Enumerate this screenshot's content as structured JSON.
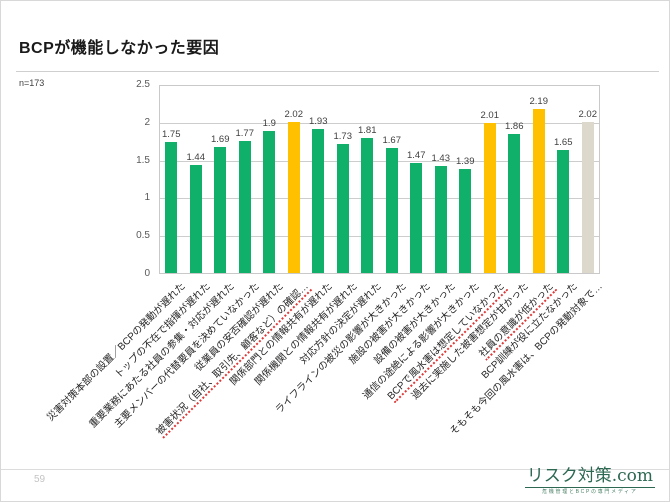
{
  "header": {
    "title": "BCPが機能しなかった要因"
  },
  "chart": {
    "n_label": "n=173"
  },
  "chart_data": {
    "type": "bar",
    "title": "BCPが機能しなかった要因",
    "sample_label": "n=173",
    "xlabel": "",
    "ylabel": "",
    "ylim": [
      0,
      2.5
    ],
    "yticks": [
      0,
      0.5,
      1,
      1.5,
      2,
      2.5
    ],
    "grid": true,
    "legend": "none",
    "categories": [
      "災害対策本部の設置／BCPの発動が遅れた",
      "トップの不在で指揮が遅れた",
      "重要業務にあたる社員の参集・対応が遅れた",
      "主要メンバーの代替要員を決めていなかった",
      "従業員の安否確認が遅れた",
      "被害状況（自社、取引先、顧客など）の確認…",
      "関係部門との情報共有が遅れた",
      "関係機関との情報共有が遅れた",
      "対応方針の決定が遅れた",
      "ライフラインの被災の影響が大きかった",
      "施設の被害が大きかった",
      "設備の被害が大きかった",
      "通信の途絶による影響が大きかった",
      "BCPで風水害は想定していなかった",
      "過去に実施した被害想定が甘かった",
      "社員の意識が低かった",
      "BCP訓練が役に立たなかった",
      "そもそも今回の風水害は、BCPの発動対象で…"
    ],
    "values": [
      1.75,
      1.44,
      1.69,
      1.77,
      1.9,
      2.02,
      1.93,
      1.73,
      1.81,
      1.67,
      1.47,
      1.43,
      1.39,
      2.01,
      1.86,
      2.19,
      1.65,
      2.02
    ],
    "bar_colors": [
      "green",
      "green",
      "green",
      "green",
      "green",
      "orange",
      "green",
      "green",
      "green",
      "green",
      "green",
      "green",
      "green",
      "orange",
      "green",
      "orange",
      "green",
      "gray"
    ],
    "emphasized_category_indexes": [
      5,
      13,
      15
    ],
    "palette": {
      "green": "#10af6a",
      "orange": "#ffc000",
      "gray": "#dcd9cc",
      "emphasis_underline": "#dd3a3a"
    }
  },
  "footer": {
    "page_number": "59",
    "logo_text": "リスク対策.com",
    "logo_tagline": "危機管理とBCPの専門メディア"
  }
}
